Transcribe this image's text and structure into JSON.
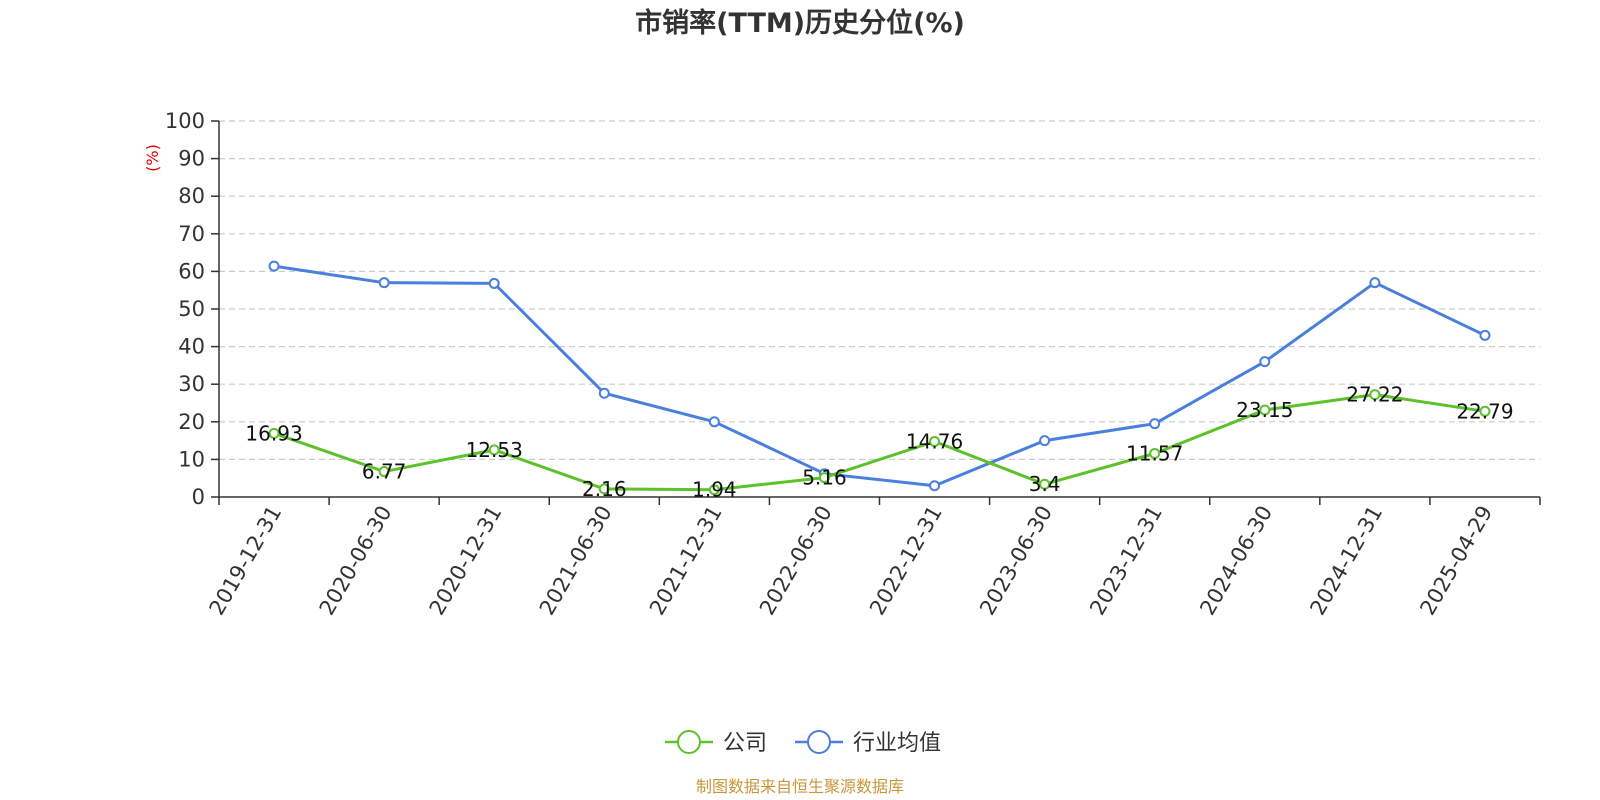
{
  "chart_data": {
    "type": "line",
    "title": "市销率(TTM)历史分位(%)",
    "ylabel": "(%)",
    "ylim": [
      0,
      100
    ],
    "yticks": [
      0,
      10,
      20,
      30,
      40,
      50,
      60,
      70,
      80,
      90,
      100
    ],
    "grid": true,
    "legend_position": "bottom",
    "categories": [
      "2019-12-31",
      "2020-06-30",
      "2020-12-31",
      "2021-06-30",
      "2021-12-31",
      "2022-06-30",
      "2022-12-31",
      "2023-06-30",
      "2023-12-31",
      "2024-06-30",
      "2024-12-31",
      "2025-04-29"
    ],
    "series": [
      {
        "name": "公司",
        "color": "#5cc12a",
        "values": [
          16.93,
          6.77,
          12.53,
          2.16,
          1.94,
          5.16,
          14.76,
          3.4,
          11.57,
          23.15,
          27.22,
          22.79
        ],
        "labels": [
          "16.93",
          "6.77",
          "12.53",
          "2.16",
          "1.94",
          "5.16",
          "14.76",
          "3.4",
          "11.57",
          "23.15",
          "27.22",
          "22.79"
        ]
      },
      {
        "name": "行业均值",
        "color": "#4a7fdc",
        "values": [
          61.4,
          57.0,
          56.8,
          27.6,
          20.0,
          6.2,
          3.0,
          15.0,
          19.5,
          36.0,
          57.0,
          43.0
        ]
      }
    ],
    "source": "制图数据来自恒生聚源数据库"
  }
}
